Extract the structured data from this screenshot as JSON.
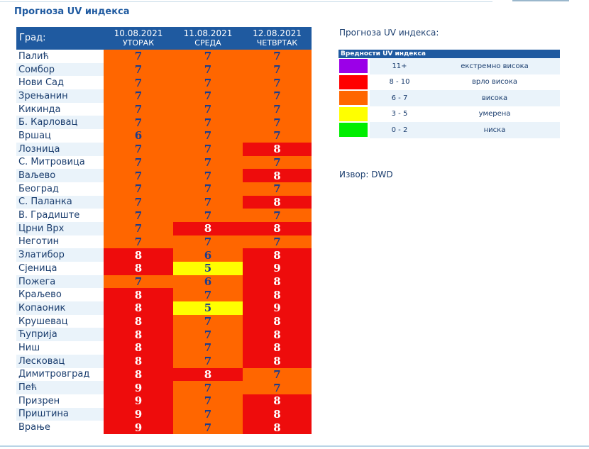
{
  "title": "Прогноза UV индекса",
  "table": {
    "city_header": "Град:",
    "days": [
      {
        "date": "10.08.2021",
        "day": "УТОРАК"
      },
      {
        "date": "11.08.2021",
        "day": "СРЕДА"
      },
      {
        "date": "12.08.2021",
        "day": "ЧЕТВРТАК"
      }
    ],
    "rows": [
      {
        "city": "Палић",
        "values": [
          7,
          7,
          7
        ]
      },
      {
        "city": "Сомбор",
        "values": [
          7,
          7,
          7
        ]
      },
      {
        "city": "Нови Сад",
        "values": [
          7,
          7,
          7
        ]
      },
      {
        "city": "Зрењанин",
        "values": [
          7,
          7,
          7
        ]
      },
      {
        "city": "Кикинда",
        "values": [
          7,
          7,
          7
        ]
      },
      {
        "city": "Б. Карловац",
        "values": [
          7,
          7,
          7
        ]
      },
      {
        "city": "Вршац",
        "values": [
          6,
          7,
          7
        ]
      },
      {
        "city": "Лозница",
        "values": [
          7,
          7,
          8
        ]
      },
      {
        "city": "С. Митровица",
        "values": [
          7,
          7,
          7
        ]
      },
      {
        "city": "Ваљево",
        "values": [
          7,
          7,
          8
        ]
      },
      {
        "city": "Београд",
        "values": [
          7,
          7,
          7
        ]
      },
      {
        "city": "С. Паланка",
        "values": [
          7,
          7,
          8
        ]
      },
      {
        "city": "В. Градиште",
        "values": [
          7,
          7,
          7
        ]
      },
      {
        "city": "Црни Врх",
        "values": [
          7,
          8,
          8
        ]
      },
      {
        "city": "Неготин",
        "values": [
          7,
          7,
          7
        ]
      },
      {
        "city": "Златибор",
        "values": [
          8,
          6,
          8
        ]
      },
      {
        "city": "Сјеница",
        "values": [
          8,
          5,
          9
        ]
      },
      {
        "city": "Пожега",
        "values": [
          7,
          6,
          8
        ]
      },
      {
        "city": "Краљево",
        "values": [
          8,
          7,
          8
        ]
      },
      {
        "city": "Копаоник",
        "values": [
          8,
          5,
          9
        ]
      },
      {
        "city": "Крушевац",
        "values": [
          8,
          7,
          8
        ]
      },
      {
        "city": "Ћуприја",
        "values": [
          8,
          7,
          8
        ]
      },
      {
        "city": "Ниш",
        "values": [
          8,
          7,
          8
        ]
      },
      {
        "city": "Лесковац",
        "values": [
          8,
          7,
          8
        ]
      },
      {
        "city": "Димитровград",
        "values": [
          8,
          8,
          7
        ]
      },
      {
        "city": "Пећ",
        "values": [
          9,
          7,
          7
        ]
      },
      {
        "city": "Призрен",
        "values": [
          9,
          7,
          8
        ]
      },
      {
        "city": "Приштина",
        "values": [
          9,
          7,
          8
        ]
      },
      {
        "city": "Врање",
        "values": [
          9,
          7,
          8
        ]
      }
    ]
  },
  "legend": {
    "heading": "Прогноза UV индекса:",
    "table_title": "Вредности UV индекса",
    "items": [
      {
        "range": "11+",
        "label": "екстремно висока",
        "color": "#9b00e8"
      },
      {
        "range": "8 - 10",
        "label": "врло висока",
        "color": "#ff0000"
      },
      {
        "range": "6 - 7",
        "label": "висока",
        "color": "#ff6600"
      },
      {
        "range": "3 - 5",
        "label": "умерена",
        "color": "#ffff00"
      },
      {
        "range": "0 - 2",
        "label": "ниска",
        "color": "#00ee00"
      }
    ]
  },
  "value_style": {
    "5": {
      "bg": "#ffff00",
      "fg": "#1a3d8f"
    },
    "6": {
      "bg": "#ff6600",
      "fg": "#1a3d8f"
    },
    "7": {
      "bg": "#ff6600",
      "fg": "#1a3d8f"
    },
    "8": {
      "bg": "#ee0c0c",
      "fg": "#ffffff"
    },
    "9": {
      "bg": "#ee0c0c",
      "fg": "#ffffff"
    }
  },
  "source": "Извор: DWD"
}
